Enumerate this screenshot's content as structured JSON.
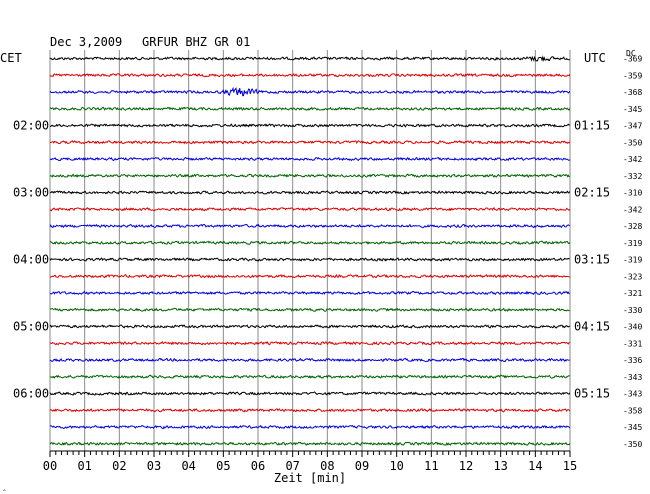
{
  "header": {
    "date": "Dec 3,2009",
    "station": "GRFUR BHZ GR 01",
    "left_zone": "CET",
    "right_zone": "UTC",
    "dc_label": "DC",
    "corner_mark": "‸"
  },
  "chart_data": {
    "type": "line",
    "xlabel": "Zeit [min]",
    "xlim": [
      0,
      15
    ],
    "x_ticks": [
      "00",
      "01",
      "02",
      "03",
      "04",
      "05",
      "06",
      "07",
      "08",
      "09",
      "10",
      "11",
      "12",
      "13",
      "14",
      "15"
    ],
    "row_colors": [
      "#000000",
      "#e00000",
      "#0000e0",
      "#006400"
    ],
    "left_time_labels": [
      "02:00",
      "03:00",
      "04:00",
      "05:00",
      "06:00"
    ],
    "right_time_labels": [
      "01:15",
      "02:15",
      "03:15",
      "04:15",
      "05:15"
    ],
    "time_label_every_rows": 4,
    "time_label_first_row": 4,
    "dc_offsets": [
      -369,
      -359,
      -368,
      -345,
      -347,
      -350,
      -342,
      -332,
      -310,
      -342,
      -328,
      -319,
      -319,
      -323,
      -321,
      -330,
      -340,
      -331,
      -336,
      -343,
      -343,
      -358,
      -345,
      -350
    ],
    "events": [
      {
        "row": 0,
        "x_start": 13.6,
        "x_end": 14.6,
        "amplitude": 1.6
      },
      {
        "row": 2,
        "x_start": 4.9,
        "x_end": 6.1,
        "amplitude": 3.2
      }
    ]
  }
}
